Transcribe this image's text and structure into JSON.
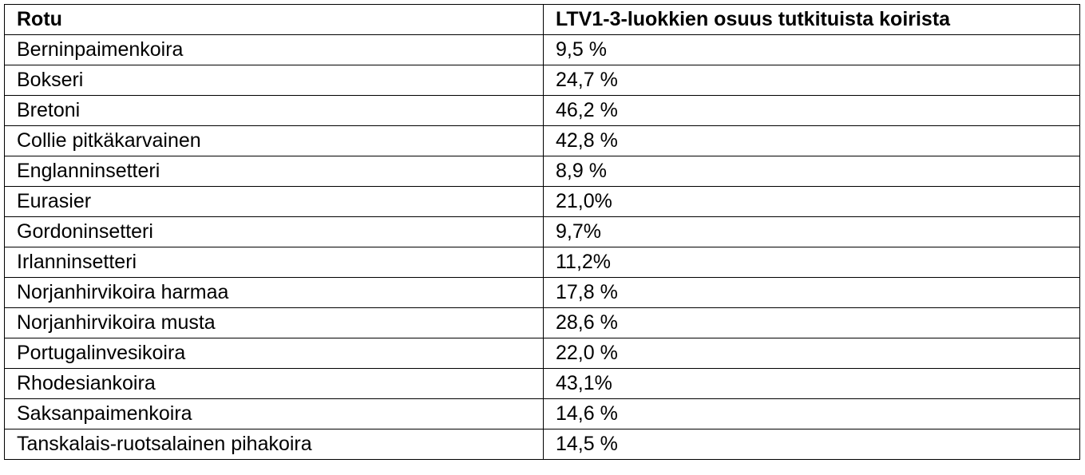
{
  "table": {
    "header": [
      "Rotu",
      "LTV1-3-luokkien osuus tutkituista koirista"
    ],
    "rows": [
      [
        "Berninpaimenkoira",
        "9,5 %"
      ],
      [
        "Bokseri",
        "24,7 %"
      ],
      [
        "Bretoni",
        "46,2 %"
      ],
      [
        "Collie pitkäkarvainen",
        "42,8 %"
      ],
      [
        "Englanninsetteri",
        "8,9 %"
      ],
      [
        "Eurasier",
        "21,0%"
      ],
      [
        "Gordoninsetteri",
        "9,7%"
      ],
      [
        "Irlanninsetteri",
        "11,2%"
      ],
      [
        "Norjanhirvikoira harmaa",
        "17,8 %"
      ],
      [
        "Norjanhirvikoira musta",
        "28,6 %"
      ],
      [
        "Portugalinvesikoira",
        "22,0 %"
      ],
      [
        "Rhodesiankoira",
        "43,1%"
      ],
      [
        "Saksanpaimenkoira",
        "14,6 %"
      ],
      [
        "Tanskalais-ruotsalainen pihakoira",
        "14,5 %"
      ]
    ]
  }
}
